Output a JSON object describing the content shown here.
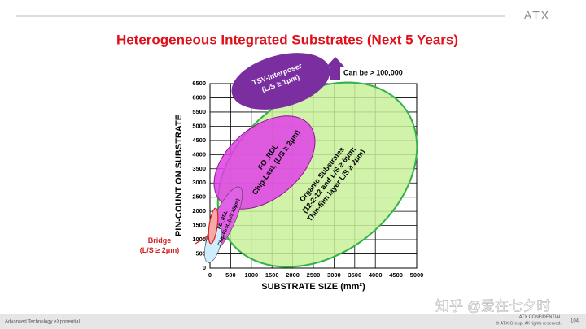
{
  "header": {
    "logo": "ATX"
  },
  "chart_data": {
    "type": "region",
    "title": "Heterogeneous Integrated Substrates (Next 5 Years)",
    "x_label": "SUBSTRATE SIZE (mm²)",
    "y_label": "PIN-COUNT ON SUBSTRATE",
    "xlim": [
      0,
      5000
    ],
    "ylim": [
      0,
      6500
    ],
    "xticks": [
      0,
      500,
      1000,
      1500,
      2000,
      2500,
      3000,
      3500,
      4000,
      4500,
      5000
    ],
    "yticks": [
      0,
      500,
      1000,
      1500,
      2000,
      2500,
      3000,
      3500,
      4000,
      4500,
      5000,
      5500,
      6000,
      6500
    ],
    "grid": true,
    "regions": [
      {
        "lines": [
          "Organic Substrates",
          "(12-2-12 and L/S ≥ 6μm;",
          "Thin-film layer L/S ≥ 2μm)"
        ]
      },
      {
        "lines": [
          "FO_RDL",
          "Chip-Last, (L/S ≥ 2μm)"
        ]
      },
      {
        "lines": [
          "TSV-Interposer",
          "(L/S ≥ 1μm)"
        ]
      },
      {
        "lines": [
          "FO_RDL",
          "Chip-First, (L/S ≥5μm)"
        ]
      },
      {
        "lines": [
          "Bridge",
          "(L/S ≥ 2μm)"
        ]
      }
    ],
    "annotation": "Can be > 100,000"
  },
  "footer": {
    "tagline": "Advanced Technology eXponential",
    "confidential": "ATX CONFIDENTIAL",
    "copyright": "© ATX Group. All rights reserved.",
    "page": "104"
  },
  "watermark": "知乎 @爱在七夕时"
}
